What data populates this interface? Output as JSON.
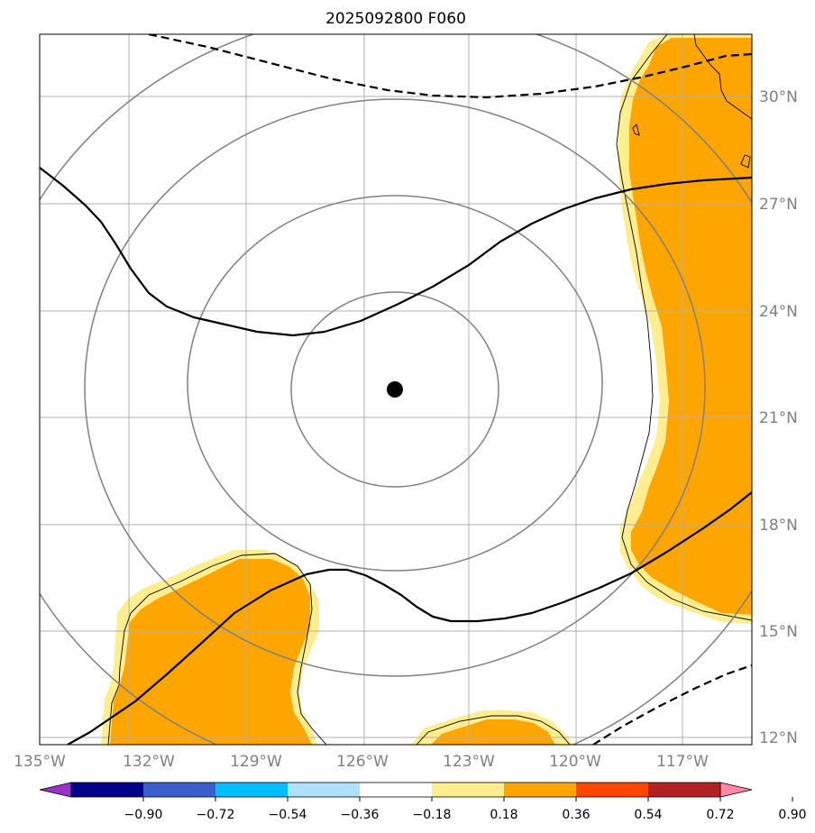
{
  "title": "2025092800 F060",
  "longitude_labels": [
    "135°W",
    "132°W",
    "129°W",
    "126°W",
    "123°W",
    "120°W",
    "117°W"
  ],
  "latitude_labels": [
    "30°N",
    "27°N",
    "24°N",
    "21°N",
    "18°N",
    "15°N",
    "12°N"
  ],
  "colorbar": {
    "tick_labels": [
      "−0.90",
      "−0.72",
      "−0.54",
      "−0.36",
      "−0.18",
      "0.18",
      "0.36",
      "0.54",
      "0.72",
      "0.90"
    ],
    "colors": [
      "#9932cc",
      "#00008b",
      "#3a5fcd",
      "#00bfff",
      "#b0e0ff",
      "#ffffff",
      "#ffee90",
      "#ffa500",
      "#ff4500",
      "#b22222",
      "#ff88aa"
    ]
  },
  "colors": {
    "fill_positive_low": "#ffee90",
    "fill_positive_mid": "#ffa500",
    "range_rings": "#808080",
    "gridlines": "#b0b0b0",
    "contours": "#000000",
    "storm_center": "#000000"
  },
  "storm_center": {
    "lon": -125.2,
    "lat": 21.8
  }
}
